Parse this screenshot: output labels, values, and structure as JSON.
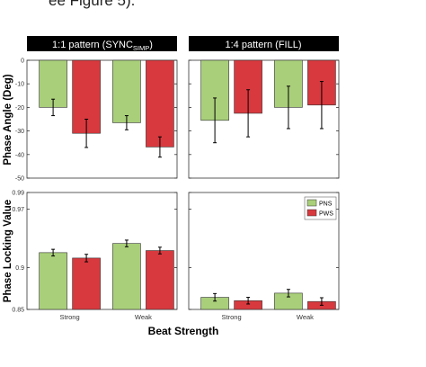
{
  "page_caption": "ee Figure 5).",
  "panel_titles": {
    "left_main": "1:1 pattern (SYNC",
    "left_sub": "SIMP",
    "left_close": ")",
    "right": "1:4 pattern (FILL)"
  },
  "axis_text": {
    "ylabel_top": "Phase Angle (Deg)",
    "ylabel_bottom": "Phase Locking Value",
    "xlabel": "Beat Strength"
  },
  "colors": {
    "PNS": "#a9cf7a",
    "PWS": "#d8393e"
  },
  "chart_data": [
    {
      "type": "bar",
      "panel": "top-left",
      "categories": [
        "Strong",
        "Weak"
      ],
      "series": [
        {
          "name": "PNS",
          "values": [
            -20,
            -26.5
          ],
          "error": [
            3.5,
            3
          ]
        },
        {
          "name": "PWS",
          "values": [
            -31,
            -36.8
          ],
          "error": [
            6,
            4.3
          ]
        }
      ],
      "ylim": [
        -50,
        0
      ],
      "yticks": [
        0,
        -10,
        -20,
        -30,
        -40,
        -50
      ],
      "ytick_labels": [
        "0",
        "-10",
        "-20",
        "-30",
        "-40",
        "-50"
      ]
    },
    {
      "type": "bar",
      "panel": "top-right",
      "categories": [
        "Strong",
        "Weak"
      ],
      "series": [
        {
          "name": "PNS",
          "values": [
            -25.5,
            -20
          ],
          "error": [
            9.5,
            9
          ]
        },
        {
          "name": "PWS",
          "values": [
            -22.5,
            -19
          ],
          "error": [
            10,
            10
          ]
        }
      ],
      "ylim": [
        -50,
        0
      ],
      "yticks": [
        0,
        -10,
        -20,
        -30,
        -40,
        -50
      ]
    },
    {
      "type": "bar",
      "panel": "bottom-left",
      "categories": [
        "Strong",
        "Weak"
      ],
      "series": [
        {
          "name": "PNS",
          "values": [
            0.918,
            0.929
          ],
          "error": [
            0.004,
            0.004
          ]
        },
        {
          "name": "PWS",
          "values": [
            0.9115,
            0.9205
          ],
          "error": [
            0.0045,
            0.004
          ]
        }
      ],
      "ylim": [
        0.85,
        0.99
      ],
      "yticks": [
        0.99,
        0.97,
        0.9,
        0.85
      ],
      "ytick_labels": [
        "0.99",
        "0.97",
        "0.9",
        "0.85"
      ],
      "legend": [
        "PNS",
        "PWS"
      ],
      "legend_placement": "top-right (bottom-right panel)"
    },
    {
      "type": "bar",
      "panel": "bottom-right",
      "categories": [
        "Strong",
        "Weak"
      ],
      "series": [
        {
          "name": "PNS",
          "values": [
            0.8645,
            0.8695
          ],
          "error": [
            0.0045,
            0.0045
          ]
        },
        {
          "name": "PWS",
          "values": [
            0.8605,
            0.8595
          ],
          "error": [
            0.004,
            0.0045
          ]
        }
      ],
      "ylim": [
        0.85,
        0.99
      ],
      "yticks": [
        0.99,
        0.97,
        0.9,
        0.85
      ]
    }
  ]
}
